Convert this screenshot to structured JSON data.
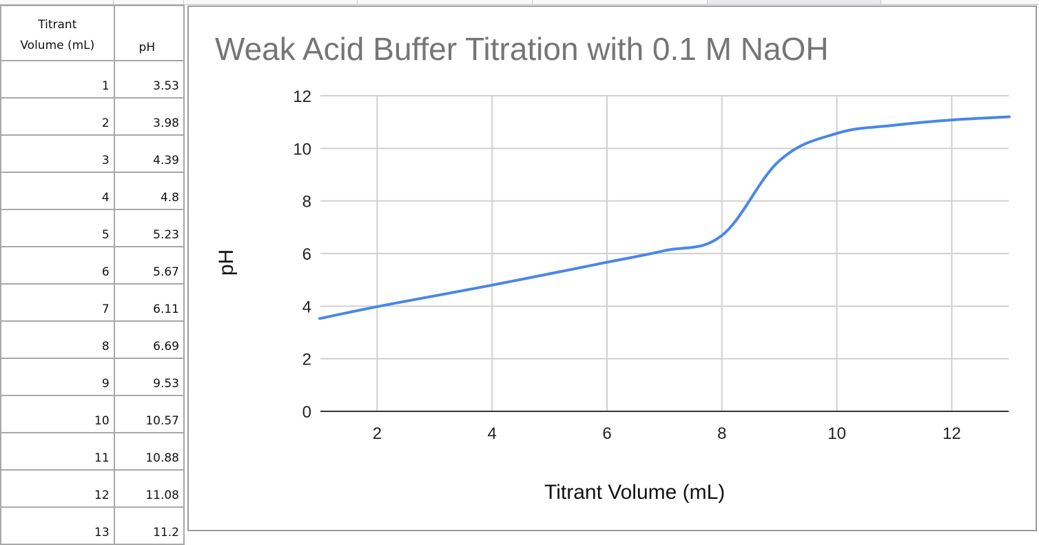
{
  "sheet": {
    "headers": [
      "Titrant Volume (mL)",
      "pH"
    ],
    "header_a_line1": "Titrant",
    "header_a_line2": "Volume (mL)",
    "header_b": "pH",
    "rows": [
      {
        "volume": "1",
        "ph": "3.53"
      },
      {
        "volume": "2",
        "ph": "3.98"
      },
      {
        "volume": "3",
        "ph": "4.39"
      },
      {
        "volume": "4",
        "ph": "4.8"
      },
      {
        "volume": "5",
        "ph": "5.23"
      },
      {
        "volume": "6",
        "ph": "5.67"
      },
      {
        "volume": "7",
        "ph": "6.11"
      },
      {
        "volume": "8",
        "ph": "6.69"
      },
      {
        "volume": "9",
        "ph": "9.53"
      },
      {
        "volume": "10",
        "ph": "10.57"
      },
      {
        "volume": "11",
        "ph": "10.88"
      },
      {
        "volume": "12",
        "ph": "11.08"
      },
      {
        "volume": "13",
        "ph": "11.2"
      }
    ]
  },
  "chart": {
    "title": "Weak Acid Buffer Titration with 0.1 M NaOH",
    "xlabel": "Titrant Volume (mL)",
    "ylabel": "pH",
    "line_color": "#4a86e8",
    "y_ticks": [
      "0",
      "2",
      "4",
      "6",
      "8",
      "10",
      "12"
    ],
    "x_ticks": [
      "2",
      "4",
      "6",
      "8",
      "10",
      "12"
    ]
  },
  "chart_data": {
    "type": "line",
    "title": "Weak Acid Buffer Titration with 0.1 M NaOH",
    "xlabel": "Titrant Volume (mL)",
    "ylabel": "pH",
    "x": [
      1,
      2,
      3,
      4,
      5,
      6,
      7,
      8,
      9,
      10,
      11,
      12,
      13
    ],
    "series": [
      {
        "name": "pH",
        "values": [
          3.53,
          3.98,
          4.39,
          4.8,
          5.23,
          5.67,
          6.11,
          6.69,
          9.53,
          10.57,
          10.88,
          11.08,
          11.2
        ],
        "color": "#4a86e8",
        "smooth": true
      }
    ],
    "xlim": [
      1,
      13
    ],
    "ylim": [
      0,
      12
    ],
    "x_ticks": [
      2,
      4,
      6,
      8,
      10,
      12
    ],
    "y_ticks": [
      0,
      2,
      4,
      6,
      8,
      10,
      12
    ],
    "grid": true,
    "legend": "none"
  }
}
